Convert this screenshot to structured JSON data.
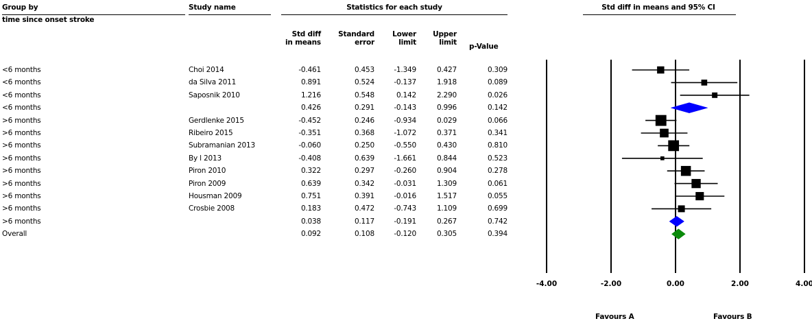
{
  "headers": {
    "group_by": "Group by",
    "group_sub": "time since onset stroke",
    "study_name": "Study name",
    "stats_title": "Statistics for each study",
    "std_diff_1": "Std diff",
    "std_diff_2": "in means",
    "std_err_1": "Standard",
    "std_err_2": "error",
    "lower_1": "Lower",
    "lower_2": "limit",
    "upper_1": "Upper",
    "upper_2": "limit",
    "p_value": "p-Value",
    "plot_title": "Std diff in means and 95% CI"
  },
  "footer": {
    "favours_a": "Favours A",
    "favours_b": "Favours B"
  },
  "chart_data": {
    "type": "forest",
    "title": "Std diff in means and 95% CI",
    "xlim": [
      -4,
      4
    ],
    "xticks": [
      "-4.00",
      "-2.00",
      "0.00",
      "2.00",
      "4.00"
    ],
    "xtick_values": [
      -4,
      -2,
      0,
      2,
      4
    ],
    "colors": {
      "study": "#000000",
      "subgroup1": "#0000ff",
      "subgroup2": "#0000ff",
      "overall": "#0a8a0a"
    },
    "rows": [
      {
        "group": "<6 months",
        "study": "Choi 2014",
        "smd": "-0.461",
        "se": "0.453",
        "lower": "-1.349",
        "upper": "0.427",
        "p": "0.309",
        "kind": "study",
        "v": -0.461,
        "lo": -1.349,
        "hi": 0.427,
        "w": 0.453
      },
      {
        "group": "<6 months",
        "study": "da Silva 2011",
        "smd": "0.891",
        "se": "0.524",
        "lower": "-0.137",
        "upper": "1.918",
        "p": "0.089",
        "kind": "study",
        "v": 0.891,
        "lo": -0.137,
        "hi": 1.918,
        "w": 0.524
      },
      {
        "group": "<6 months",
        "study": "Saposnik 2010",
        "smd": "1.216",
        "se": "0.548",
        "lower": "0.142",
        "upper": "2.290",
        "p": "0.026",
        "kind": "study",
        "v": 1.216,
        "lo": 0.142,
        "hi": 2.29,
        "w": 0.548
      },
      {
        "group": "<6 months",
        "study": "",
        "smd": "0.426",
        "se": "0.291",
        "lower": "-0.143",
        "upper": "0.996",
        "p": "0.142",
        "kind": "subgroup1",
        "v": 0.426,
        "lo": -0.143,
        "hi": 0.996,
        "w": 0.291
      },
      {
        "group": ">6 months",
        "study": "Gerdlenke 2015",
        "smd": "-0.452",
        "se": "0.246",
        "lower": "-0.934",
        "upper": "0.029",
        "p": "0.066",
        "kind": "study",
        "v": -0.452,
        "lo": -0.934,
        "hi": 0.029,
        "w": 0.246
      },
      {
        "group": ">6 months",
        "study": "Ribeiro 2015",
        "smd": "-0.351",
        "se": "0.368",
        "lower": "-1.072",
        "upper": "0.371",
        "p": "0.341",
        "kind": "study",
        "v": -0.351,
        "lo": -1.072,
        "hi": 0.371,
        "w": 0.368
      },
      {
        "group": ">6 months",
        "study": "Subramanian 2013",
        "smd": "-0.060",
        "se": "0.250",
        "lower": "-0.550",
        "upper": "0.430",
        "p": "0.810",
        "kind": "study",
        "v": -0.06,
        "lo": -0.55,
        "hi": 0.43,
        "w": 0.25
      },
      {
        "group": ">6 months",
        "study": "By l 2013",
        "smd": "-0.408",
        "se": "0.639",
        "lower": "-1.661",
        "upper": "0.844",
        "p": "0.523",
        "kind": "study",
        "v": -0.408,
        "lo": -1.661,
        "hi": 0.844,
        "w": 0.639
      },
      {
        "group": ">6 months",
        "study": "Piron 2010",
        "smd": "0.322",
        "se": "0.297",
        "lower": "-0.260",
        "upper": "0.904",
        "p": "0.278",
        "kind": "study",
        "v": 0.322,
        "lo": -0.26,
        "hi": 0.904,
        "w": 0.297
      },
      {
        "group": ">6 months",
        "study": "Piron 2009",
        "smd": "0.639",
        "se": "0.342",
        "lower": "-0.031",
        "upper": "1.309",
        "p": "0.061",
        "kind": "study",
        "v": 0.639,
        "lo": -0.031,
        "hi": 1.309,
        "w": 0.342
      },
      {
        "group": ">6 months",
        "study": "Housman 2009",
        "smd": "0.751",
        "se": "0.391",
        "lower": "-0.016",
        "upper": "1.517",
        "p": "0.055",
        "kind": "study",
        "v": 0.751,
        "lo": -0.016,
        "hi": 1.517,
        "w": 0.391
      },
      {
        "group": ">6 months",
        "study": "Crosbie 2008",
        "smd": "0.183",
        "se": "0.472",
        "lower": "-0.743",
        "upper": "1.109",
        "p": "0.699",
        "kind": "study",
        "v": 0.183,
        "lo": -0.743,
        "hi": 1.109,
        "w": 0.472
      },
      {
        "group": ">6 months",
        "study": "",
        "smd": "0.038",
        "se": "0.117",
        "lower": "-0.191",
        "upper": "0.267",
        "p": "0.742",
        "kind": "subgroup2",
        "v": 0.038,
        "lo": -0.191,
        "hi": 0.267,
        "w": 0.117
      },
      {
        "group": "Overall",
        "study": "",
        "smd": "0.092",
        "se": "0.108",
        "lower": "-0.120",
        "upper": "0.305",
        "p": "0.394",
        "kind": "overall",
        "v": 0.092,
        "lo": -0.12,
        "hi": 0.305,
        "w": 0.108
      }
    ]
  }
}
